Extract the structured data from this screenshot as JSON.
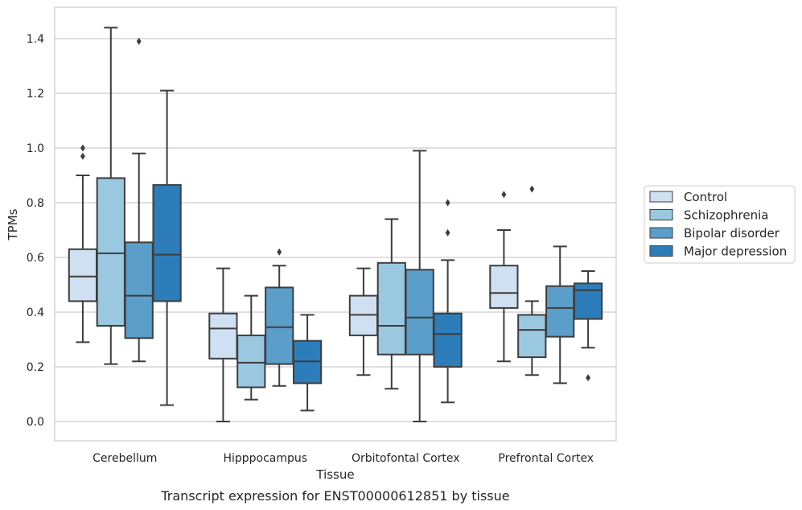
{
  "chart_data": {
    "type": "box",
    "title": "",
    "caption": "Transcript expression for ENST00000612851 by tissue",
    "xlabel": "Tissue",
    "ylabel": "TPMs",
    "ylim": [
      -0.07,
      1.52
    ],
    "yticks": [
      "0.0",
      "0.2",
      "0.4",
      "0.6",
      "0.8",
      "1.0",
      "1.2",
      "1.4"
    ],
    "grid": "horizontal",
    "legend_position": "right",
    "categories": [
      "Cerebellum",
      "Hipppocampus",
      "Orbitofontal Cortex",
      "Prefrontal Cortex"
    ],
    "series": [
      {
        "name": "Control",
        "color": "#cee0f2",
        "boxes": [
          {
            "whislo": 0.29,
            "q1": 0.44,
            "med": 0.53,
            "q3": 0.63,
            "whishi": 0.9,
            "fliers": [
              0.97,
              1.0
            ]
          },
          {
            "whislo": 0.0,
            "q1": 0.23,
            "med": 0.34,
            "q3": 0.395,
            "whishi": 0.56,
            "fliers": []
          },
          {
            "whislo": 0.17,
            "q1": 0.315,
            "med": 0.39,
            "q3": 0.46,
            "whishi": 0.56,
            "fliers": []
          },
          {
            "whislo": 0.22,
            "q1": 0.415,
            "med": 0.47,
            "q3": 0.57,
            "whishi": 0.7,
            "fliers": [
              0.83
            ]
          }
        ]
      },
      {
        "name": "Schizophrenia",
        "color": "#9ac8e0",
        "boxes": [
          {
            "whislo": 0.21,
            "q1": 0.35,
            "med": 0.615,
            "q3": 0.89,
            "whishi": 1.44,
            "fliers": []
          },
          {
            "whislo": 0.08,
            "q1": 0.125,
            "med": 0.215,
            "q3": 0.315,
            "whishi": 0.46,
            "fliers": []
          },
          {
            "whislo": 0.12,
            "q1": 0.245,
            "med": 0.35,
            "q3": 0.58,
            "whishi": 0.74,
            "fliers": []
          },
          {
            "whislo": 0.17,
            "q1": 0.235,
            "med": 0.335,
            "q3": 0.39,
            "whishi": 0.44,
            "fliers": [
              0.85
            ]
          }
        ]
      },
      {
        "name": "Bipolar disorder",
        "color": "#5b9ec9",
        "boxes": [
          {
            "whislo": 0.22,
            "q1": 0.305,
            "med": 0.46,
            "q3": 0.655,
            "whishi": 0.98,
            "fliers": [
              1.39
            ]
          },
          {
            "whislo": 0.13,
            "q1": 0.21,
            "med": 0.345,
            "q3": 0.49,
            "whishi": 0.57,
            "fliers": [
              0.62
            ]
          },
          {
            "whislo": 0.0,
            "q1": 0.245,
            "med": 0.38,
            "q3": 0.555,
            "whishi": 0.99,
            "fliers": []
          },
          {
            "whislo": 0.14,
            "q1": 0.31,
            "med": 0.415,
            "q3": 0.495,
            "whishi": 0.64,
            "fliers": []
          }
        ]
      },
      {
        "name": "Major depression",
        "color": "#2d7dbb",
        "boxes": [
          {
            "whislo": 0.06,
            "q1": 0.44,
            "med": 0.61,
            "q3": 0.865,
            "whishi": 1.21,
            "fliers": []
          },
          {
            "whislo": 0.04,
            "q1": 0.14,
            "med": 0.22,
            "q3": 0.295,
            "whishi": 0.39,
            "fliers": []
          },
          {
            "whislo": 0.07,
            "q1": 0.2,
            "med": 0.32,
            "q3": 0.395,
            "whishi": 0.59,
            "fliers": [
              0.69,
              0.8
            ]
          },
          {
            "whislo": 0.27,
            "q1": 0.375,
            "med": 0.48,
            "q3": 0.505,
            "whishi": 0.55,
            "fliers": [
              0.16
            ]
          }
        ]
      }
    ]
  }
}
